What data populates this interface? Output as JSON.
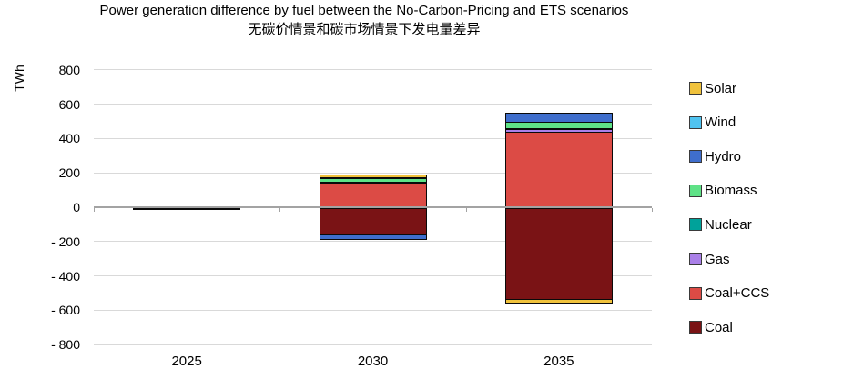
{
  "chart_data": {
    "type": "bar",
    "stacked": true,
    "title": "Power generation difference by fuel between the No-Carbon-Pricing and ETS scenarios",
    "subtitle": "无碳价情景和碳市场情景下发电量差异",
    "ylabel": "TWh",
    "categories": [
      "2025",
      "2030",
      "2035"
    ],
    "series": [
      {
        "name": "Solar",
        "color": "#F0C23C",
        "values": [
          0,
          10,
          -15
        ]
      },
      {
        "name": "Wind",
        "color": "#4FC3F0",
        "values": [
          0,
          5,
          0
        ]
      },
      {
        "name": "Hydro",
        "color": "#3F6ECC",
        "values": [
          0,
          -20,
          48
        ]
      },
      {
        "name": "Biomass",
        "color": "#5FE287",
        "values": [
          0,
          20,
          38
        ]
      },
      {
        "name": "Nuclear",
        "color": "#00A29A",
        "values": [
          0,
          3,
          3
        ]
      },
      {
        "name": "Gas",
        "color": "#AA80E8",
        "values": [
          0,
          2,
          15
        ]
      },
      {
        "name": "Coal+CCS",
        "color": "#DC4B45",
        "values": [
          3,
          150,
          445
        ]
      },
      {
        "name": "Coal",
        "color": "#7A1315",
        "values": [
          -3,
          -160,
          -535
        ]
      }
    ],
    "ylim": [
      -800,
      800
    ],
    "ytick_step": 200,
    "ytick_labels": [
      "800",
      "600",
      "400",
      "200",
      "0",
      "- 200",
      "- 400",
      "- 600",
      "- 800"
    ],
    "grid": true,
    "legend_position": "right",
    "colors": {
      "gridline": "#d9d9d9",
      "zero_axis": "#a3a3a3",
      "segment_border": "#0a0a0a",
      "text": "#000000"
    }
  }
}
